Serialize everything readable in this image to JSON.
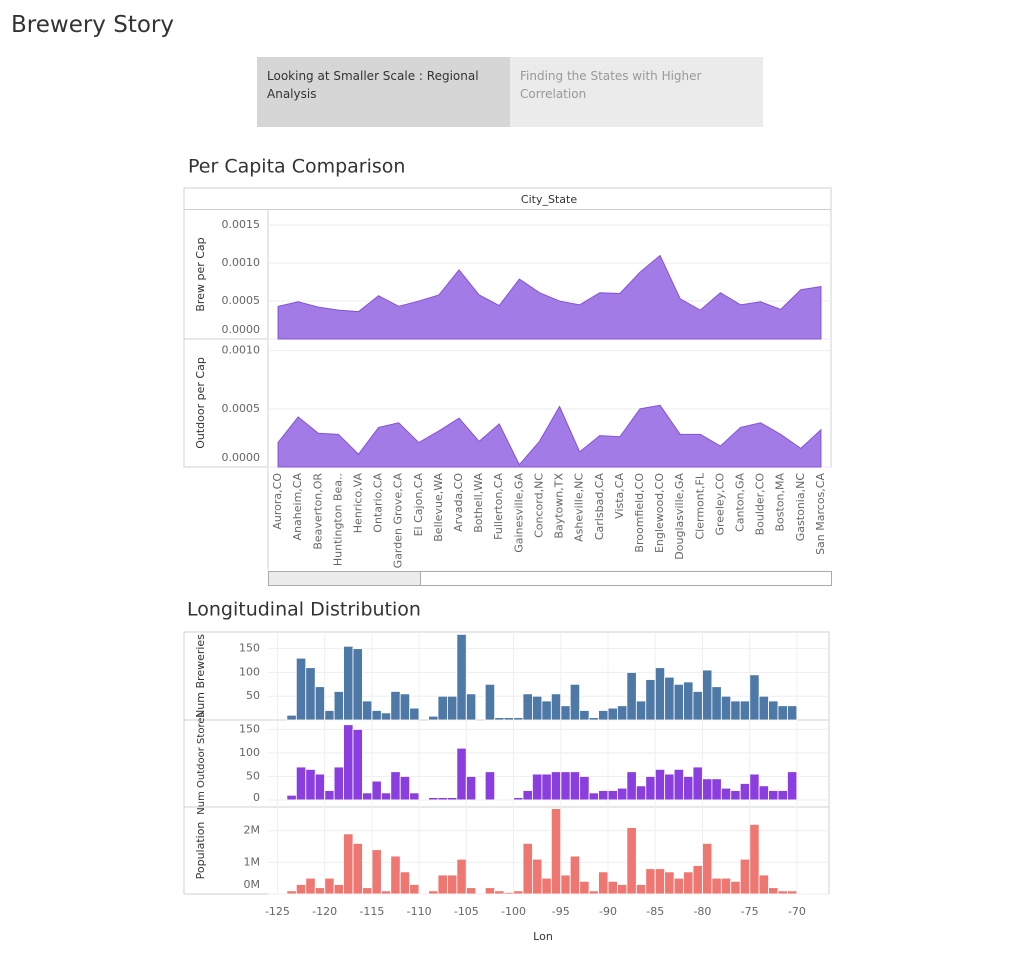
{
  "header": {
    "title": "Brewery Story"
  },
  "tabs": [
    "Looking at Smaller Scale : Regional Analysis",
    "Finding the States with Higher Correlation"
  ],
  "chart_data": [
    {
      "type": "area",
      "title": "Per Capita Comparison",
      "x_label": "City_State",
      "y_label": "Brew per Cap",
      "color": "#a27be6",
      "categories": [
        "Aurora,CO",
        "Anaheim,CA",
        "Beaverton,OR",
        "Huntington Bea..",
        "Henrico,VA",
        "Ontario,CA",
        "Garden Grove,CA",
        "El Cajon,CA",
        "Bellevue,WA",
        "Arvada,CO",
        "Bothell,WA",
        "Fullerton,CA",
        "Gainesville,GA",
        "Concord,NC",
        "Baytown,TX",
        "Asheville,NC",
        "Carlsbad,CA",
        "Vista,CA",
        "Broomfield,CO",
        "Englewood,CO",
        "Douglasville,GA",
        "Clermont,FL",
        "Greeley,CO",
        "Canton,GA",
        "Boulder,CO",
        "Boston,MA",
        "Gastonia,NC",
        "San Marcos,CA"
      ],
      "values": [
        0.00043,
        0.00049,
        0.00042,
        0.00038,
        0.00036,
        0.00057,
        0.00043,
        0.0005,
        0.00058,
        0.00091,
        0.00058,
        0.00044,
        0.00079,
        0.00061,
        0.0005,
        0.00045,
        0.00061,
        0.0006,
        0.00088,
        0.0011,
        0.00053,
        0.00038,
        0.00061,
        0.00045,
        0.00049,
        0.00039,
        0.00065,
        0.00069
      ],
      "ylim": [
        0,
        0.0017
      ],
      "yticks": [
        {
          "value": 0,
          "label": "0.0000"
        },
        {
          "value": 0.0005,
          "label": "0.0005"
        },
        {
          "value": 0.001,
          "label": "0.0010"
        },
        {
          "value": 0.0015,
          "label": "0.0015"
        }
      ]
    },
    {
      "type": "area",
      "y_label": "Outdoor per Cap",
      "color": "#a27be6",
      "values": [
        0.00021,
        0.00043,
        0.00029,
        0.00028,
        0.00011,
        0.00034,
        0.00038,
        0.00021,
        0.00031,
        0.00042,
        0.00022,
        0.00037,
        2e-05,
        0.00022,
        0.00052,
        0.00013,
        0.00027,
        0.00026,
        0.0005,
        0.00053,
        0.00028,
        0.00028,
        0.00018,
        0.00034,
        0.00038,
        0.00028,
        0.00016,
        0.00032
      ],
      "ylim": [
        0,
        0.0011
      ],
      "yticks": [
        {
          "value": 0,
          "label": "0.0000"
        },
        {
          "value": 0.0005,
          "label": "0.0005"
        },
        {
          "value": 0.001,
          "label": "0.0010"
        }
      ]
    },
    {
      "type": "histogram",
      "title": "Longitudinal Distribution",
      "y_label": "Num Breweries",
      "color": "#4e79a7",
      "bins": [
        -124,
        -123,
        -122,
        -121,
        -120,
        -119,
        -118,
        -117,
        -116,
        -115,
        -114,
        -113,
        -112,
        -111,
        -110,
        -109,
        -108,
        -107,
        -106,
        -105,
        -104,
        -103,
        -102,
        -101,
        -100,
        -99,
        -98,
        -97,
        -96,
        -95,
        -94,
        -93,
        -92,
        -91,
        -90,
        -89,
        -88,
        -87,
        -86,
        -85,
        -84,
        -83,
        -82,
        -81,
        -80,
        -79,
        -78,
        -77,
        -76,
        -75,
        -74,
        -73,
        -72,
        -71,
        -70,
        -69
      ],
      "values": [
        10,
        130,
        110,
        70,
        20,
        60,
        155,
        150,
        40,
        20,
        15,
        60,
        55,
        25,
        0,
        8,
        50,
        50,
        180,
        55,
        0,
        75,
        5,
        5,
        5,
        55,
        50,
        40,
        55,
        30,
        75,
        20,
        5,
        20,
        25,
        30,
        100,
        40,
        85,
        110,
        90,
        75,
        80,
        60,
        105,
        70,
        50,
        40,
        40,
        95,
        50,
        40,
        30,
        30,
        0
      ],
      "xlim": [
        -126,
        -66.6
      ],
      "ylim": [
        0,
        185
      ],
      "yticks": [
        50,
        100,
        150
      ]
    },
    {
      "type": "histogram",
      "y_label": "Num Outdoor Stores",
      "color": "#8a3ee0",
      "values": [
        10,
        70,
        65,
        55,
        20,
        70,
        160,
        150,
        15,
        40,
        15,
        60,
        50,
        15,
        0,
        5,
        5,
        5,
        110,
        50,
        0,
        60,
        0,
        0,
        5,
        20,
        55,
        55,
        60,
        60,
        60,
        50,
        15,
        20,
        20,
        25,
        60,
        30,
        50,
        65,
        55,
        65,
        50,
        70,
        45,
        45,
        25,
        20,
        35,
        55,
        30,
        20,
        20,
        60,
        0
      ],
      "ylim": [
        -15,
        170
      ],
      "yticks": [
        0,
        50,
        100,
        150
      ]
    },
    {
      "type": "histogram",
      "y_label": "Population",
      "x_label": "Lon",
      "color": "#ef7772",
      "values": [
        100000,
        300000,
        500000,
        200000,
        500000,
        300000,
        1900000,
        1600000,
        200000,
        1400000,
        100000,
        1200000,
        700000,
        300000,
        0,
        100000,
        600000,
        600000,
        1100000,
        200000,
        0,
        200000,
        100000,
        50000,
        100000,
        1600000,
        1100000,
        500000,
        2700000,
        600000,
        1200000,
        400000,
        100000,
        700000,
        400000,
        300000,
        2100000,
        300000,
        800000,
        800000,
        700000,
        500000,
        700000,
        900000,
        1600000,
        500000,
        500000,
        400000,
        1100000,
        2200000,
        600000,
        200000,
        100000,
        100000,
        0
      ],
      "ylim": [
        0,
        2750000
      ],
      "yticks": [
        {
          "value": 0,
          "label": "0M"
        },
        {
          "value": 1000000,
          "label": "1M"
        },
        {
          "value": 2000000,
          "label": "2M"
        }
      ],
      "xticks": [
        -125,
        -120,
        -115,
        -110,
        -105,
        -100,
        -95,
        -90,
        -85,
        -80,
        -75,
        -70
      ]
    }
  ]
}
